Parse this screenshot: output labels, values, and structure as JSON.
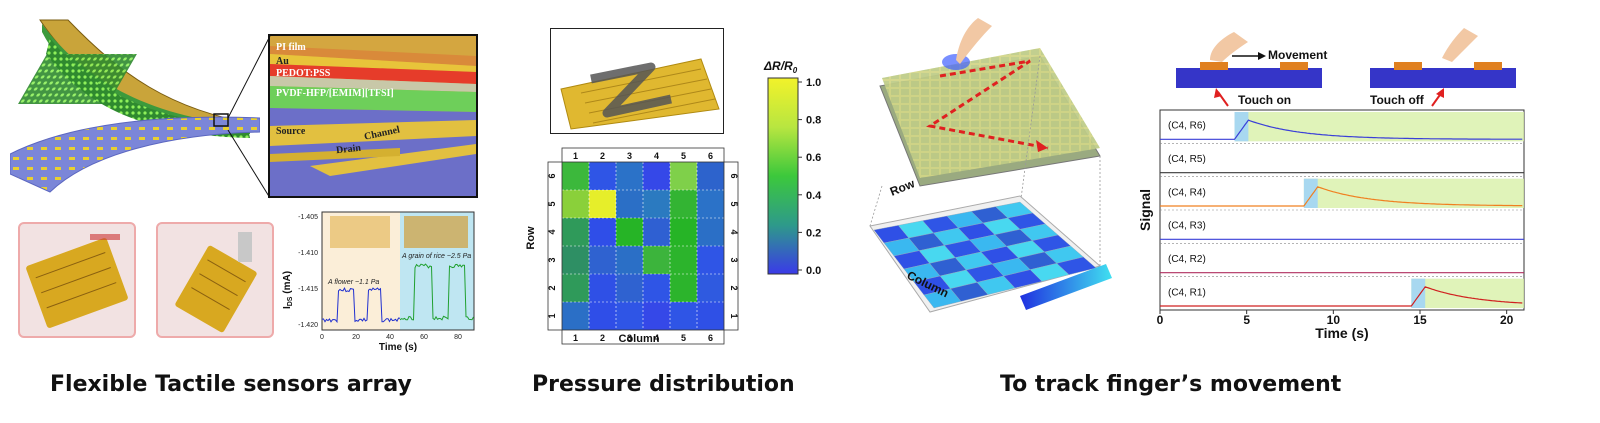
{
  "captions": {
    "left": "Flexible Tactile sensors array",
    "middle": "Pressure distribution",
    "right": "To track finger’s movement"
  },
  "layers": {
    "pi_film": "PI film",
    "au": "Au",
    "pedot": "PEDOT:PSS",
    "pvdf": "PVDF-HFP/[EMIM][TFSI]",
    "source": "Source",
    "channel": "Channel",
    "drain": "Drain"
  },
  "ids_plot": {
    "ylabel": "I",
    "ylabel_sub": "DS",
    "ylabel_unit": " (mA)",
    "xlabel": "Time (s)",
    "yticks": [
      "-1.405",
      "-1.410",
      "-1.415",
      "-1.420"
    ],
    "xticks": [
      "0",
      "20",
      "40",
      "60",
      "80"
    ],
    "annotation_flower": "A flower ~1.1 Pa",
    "annotation_rice": "A grain of rice ~2.5 Pa"
  },
  "pressure_map": {
    "col_labels": [
      "1",
      "2",
      "3",
      "4",
      "5",
      "6"
    ],
    "row_labels": [
      "6",
      "5",
      "4",
      "3",
      "2",
      "1"
    ],
    "xlabel": "Column",
    "ylabel": "Row",
    "colorbar_title": "ΔR/R",
    "colorbar_title_sub": "0",
    "colorbar_ticks": [
      "1.0",
      "0.8",
      "0.6",
      "0.4",
      "0.2",
      "0.0"
    ],
    "colors": [
      [
        "#3cb83c",
        "#2f55e6",
        "#2b72c8",
        "#3548e8",
        "#7fd04a",
        "#2d63cc"
      ],
      [
        "#8ad03a",
        "#e6ee2a",
        "#2b6fc6",
        "#2b7ac0",
        "#33b433",
        "#2b72c8"
      ],
      [
        "#2f9a5a",
        "#2f4ee8",
        "#26b426",
        "#2f60d2",
        "#26b426",
        "#2b6fc6"
      ],
      [
        "#2e8f64",
        "#2f62d0",
        "#2b6fc6",
        "#3cb43c",
        "#2cb42c",
        "#2f55e6"
      ],
      [
        "#2f9a5a",
        "#2f50e6",
        "#2f62d0",
        "#2f55e6",
        "#2cb42c",
        "#2f5ae0"
      ],
      [
        "#2b6fc6",
        "#2f4ee8",
        "#2f55e6",
        "#3548e8",
        "#2f55e6",
        "#2f50e6"
      ]
    ]
  },
  "tracking": {
    "row_label": "Row",
    "column_label": "Column",
    "movement": "Movement",
    "touch_on": "Touch on",
    "touch_off": "Touch off",
    "ylabel": "Signal",
    "xlabel": "Time (s)",
    "xticks": [
      "0",
      "5",
      "10",
      "15",
      "20"
    ],
    "traces": [
      {
        "label": "(C4, R6)",
        "color": "#3a3fd8",
        "onset": 4.3
      },
      {
        "label": "(C4, R5)",
        "color": "#3a3a3a",
        "onset": null
      },
      {
        "label": "(C4, R4)",
        "color": "#f08020",
        "onset": 8.3
      },
      {
        "label": "(C4, R3)",
        "color": "#3a3fd8",
        "onset": null
      },
      {
        "label": "(C4, R2)",
        "color": "#b03060",
        "onset": null
      },
      {
        "label": "(C4, R1)",
        "color": "#d02020",
        "onset": 14.5
      }
    ]
  }
}
